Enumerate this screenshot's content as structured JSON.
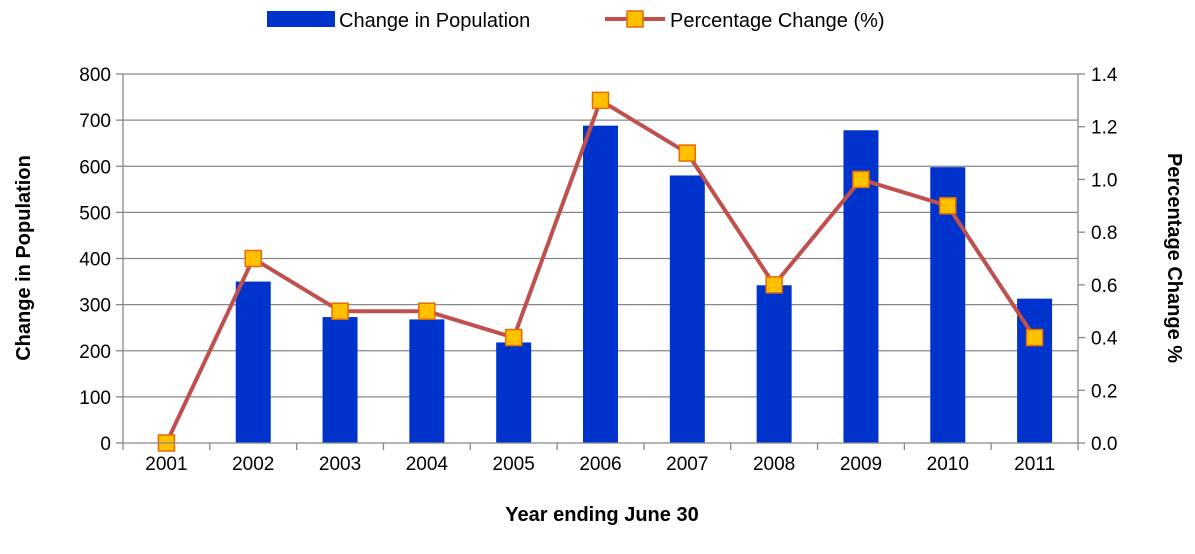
{
  "chart_data": {
    "type": "bar",
    "categories": [
      "2001",
      "2002",
      "2003",
      "2004",
      "2005",
      "2006",
      "2007",
      "2008",
      "2009",
      "2010",
      "2011"
    ],
    "series": [
      {
        "name": "Change in Population",
        "type": "bar",
        "axis": "left",
        "color": "#0033CC",
        "values": [
          0,
          350,
          273,
          268,
          218,
          688,
          580,
          342,
          678,
          598,
          313
        ]
      },
      {
        "name": "Percentage Change (%)",
        "type": "line",
        "axis": "right",
        "color": "#C0504D",
        "marker_fill": "#FFC000",
        "marker_stroke": "#E36C09",
        "values": [
          0.0,
          0.7,
          0.5,
          0.5,
          0.4,
          1.3,
          1.1,
          0.6,
          1.0,
          0.9,
          0.4
        ]
      }
    ],
    "xlabel": "Year ending June 30",
    "ylabel": "Change in Population",
    "y2label": "Percentage Change %",
    "ylim": [
      0,
      800
    ],
    "y2lim": [
      0,
      1.4
    ],
    "yticks": [
      "0",
      "100",
      "200",
      "300",
      "400",
      "500",
      "600",
      "700",
      "800"
    ],
    "y2ticks": [
      "0.0",
      "0.2",
      "0.4",
      "0.6",
      "0.8",
      "1.0",
      "1.2",
      "1.4"
    ],
    "grid": true,
    "legend": "top-center"
  }
}
